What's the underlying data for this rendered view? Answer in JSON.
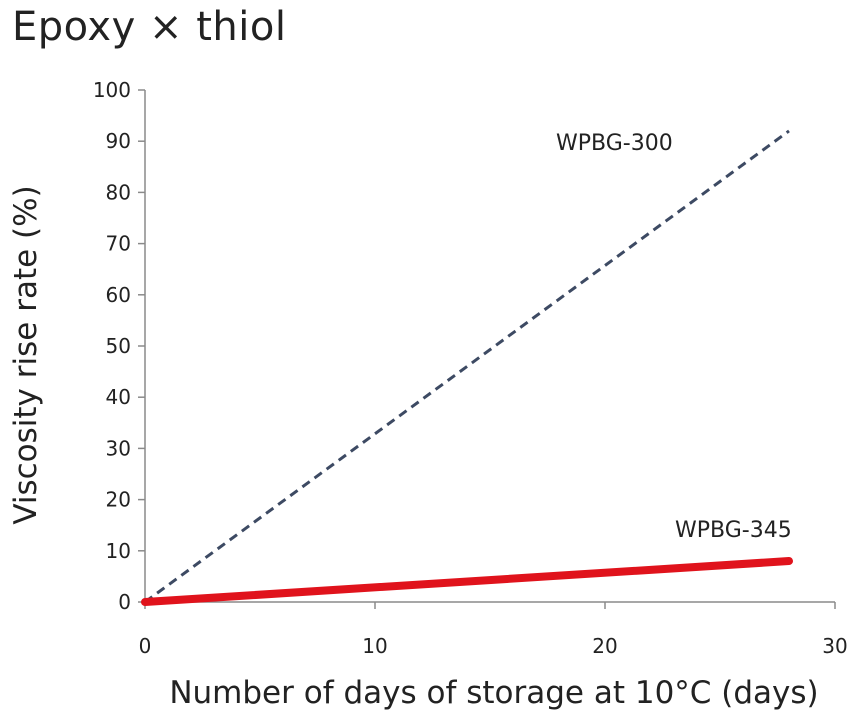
{
  "chart_data": {
    "type": "line",
    "title": "Epoxy × thiol",
    "xlabel": "Number of days of storage at 10°C (days)",
    "ylabel": "Viscosity rise rate (%)",
    "xlim": [
      0,
      30
    ],
    "ylim": [
      0,
      100
    ],
    "xticks": [
      0,
      10,
      20,
      30
    ],
    "yticks": [
      0,
      10,
      20,
      30,
      40,
      50,
      60,
      70,
      80,
      90,
      100
    ],
    "xtick_labels": [
      "0",
      "10",
      "20",
      "30"
    ],
    "ytick_labels": [
      "0",
      "10",
      "20",
      "30",
      "40",
      "50",
      "60",
      "70",
      "80",
      "90",
      "100"
    ],
    "grid": false,
    "series": [
      {
        "name": "WPBG-300",
        "x": [
          0,
          28
        ],
        "y": [
          0,
          92
        ],
        "color": "#3d4a63",
        "style": "dashed"
      },
      {
        "name": "WPBG-345",
        "x": [
          0,
          28
        ],
        "y": [
          0,
          8
        ],
        "color": "#e0131c",
        "style": "solid-thick"
      }
    ]
  }
}
